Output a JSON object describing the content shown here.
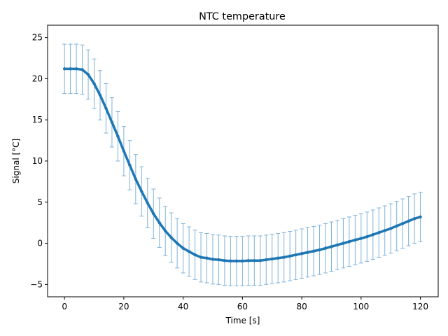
{
  "chart_data": {
    "type": "line",
    "title": "NTC temperature",
    "xlabel": "Time [s]",
    "ylabel": "Signal [°C]",
    "xlim": [
      -5.7,
      126
    ],
    "ylim": [
      -6.5,
      26.5
    ],
    "x_ticks": [
      0,
      20,
      40,
      60,
      80,
      100,
      120
    ],
    "y_ticks": [
      -5,
      0,
      5,
      10,
      15,
      20,
      25
    ],
    "x_tick_labels": [
      "0",
      "20",
      "40",
      "60",
      "80",
      "100",
      "120"
    ],
    "y_tick_labels": [
      "−5",
      "0",
      "5",
      "10",
      "15",
      "20",
      "25"
    ],
    "grid": false,
    "legend": "none",
    "colors": {
      "line": "#1f77b4",
      "errorbar": "#7fb1d8"
    },
    "series": [
      {
        "x": [
          0,
          2,
          4,
          6,
          8,
          10,
          12,
          14,
          16,
          18,
          20,
          22,
          24,
          26,
          28,
          30,
          32,
          34,
          36,
          38,
          40,
          42,
          44,
          46,
          48,
          50,
          52,
          54,
          56,
          58,
          60,
          62,
          64,
          66,
          68,
          70,
          72,
          74,
          76,
          78,
          80,
          82,
          84,
          86,
          88,
          90,
          92,
          94,
          96,
          98,
          100,
          102,
          104,
          106,
          108,
          110,
          112,
          114,
          116,
          118,
          120
        ],
        "y": [
          21.2,
          21.2,
          21.2,
          21.1,
          20.5,
          19.4,
          18.0,
          16.4,
          14.7,
          13.0,
          11.2,
          9.5,
          7.8,
          6.3,
          4.9,
          3.6,
          2.5,
          1.5,
          0.7,
          0.0,
          -0.6,
          -1.0,
          -1.4,
          -1.7,
          -1.8,
          -1.95,
          -2.0,
          -2.1,
          -2.15,
          -2.15,
          -2.15,
          -2.1,
          -2.1,
          -2.1,
          -2.0,
          -1.9,
          -1.8,
          -1.7,
          -1.55,
          -1.4,
          -1.25,
          -1.1,
          -0.95,
          -0.8,
          -0.6,
          -0.4,
          -0.2,
          0.0,
          0.2,
          0.4,
          0.6,
          0.8,
          1.05,
          1.3,
          1.55,
          1.8,
          2.1,
          2.4,
          2.7,
          3.0,
          3.2
        ],
        "error": 3.0
      }
    ]
  }
}
